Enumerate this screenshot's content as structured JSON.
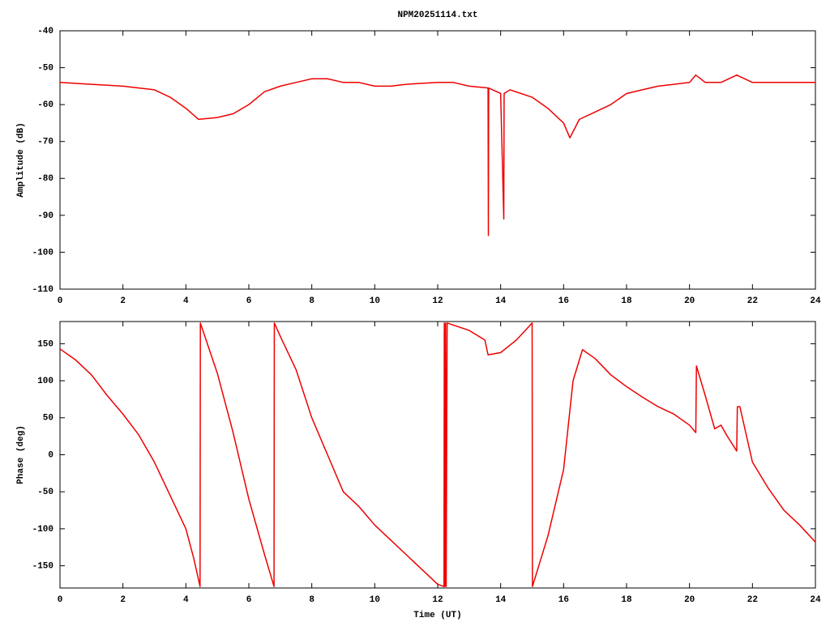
{
  "chart_data": [
    {
      "type": "line",
      "title": "NPM20251114.txt",
      "ylabel": "Amplitude (dB)",
      "color": "#ee0000",
      "x": [
        0,
        1,
        2,
        3,
        3.5,
        4,
        4.4,
        5,
        5.5,
        6,
        6.5,
        7,
        7.5,
        8,
        8.5,
        9,
        9.5,
        10,
        10.5,
        11,
        12,
        12.5,
        13,
        13.6,
        13.61,
        13.62,
        14,
        14.1,
        14.11,
        14.3,
        15,
        15.5,
        16,
        16.2,
        16.5,
        17,
        17.5,
        18,
        18.5,
        19,
        19.5,
        20,
        20.2,
        20.5,
        21,
        21.5,
        22,
        23,
        24
      ],
      "values": [
        -54,
        -54.5,
        -55,
        -56,
        -58,
        -61,
        -64,
        -63.5,
        -62.5,
        -60,
        -56.5,
        -55,
        -54,
        -53,
        -53,
        -54,
        -54,
        -55,
        -55,
        -54.5,
        -54,
        -54,
        -55,
        -55.5,
        -95.5,
        -55.5,
        -57,
        -91,
        -57,
        -56,
        -58,
        -61,
        -65,
        -69,
        -64,
        -62,
        -60,
        -57,
        -56,
        -55,
        -54.5,
        -54,
        -52,
        -54,
        -54,
        -52,
        -54,
        -54,
        -54
      ],
      "xlim": [
        0,
        24
      ],
      "xticks": [
        0,
        2,
        4,
        6,
        8,
        10,
        12,
        14,
        16,
        18,
        20,
        22,
        24
      ],
      "ylim": [
        -110,
        -40
      ],
      "yticks": [
        -110,
        -100,
        -90,
        -80,
        -70,
        -60,
        -50,
        -40
      ]
    },
    {
      "type": "line",
      "ylabel": "Phase (deg)",
      "xlabel": "Time (UT)",
      "color": "#ee0000",
      "x": [
        0,
        0.5,
        1,
        1.5,
        2,
        2.5,
        3,
        3.5,
        4,
        4.25,
        4.45,
        4.46,
        5,
        5.5,
        6,
        6.5,
        6.8,
        6.81,
        7,
        7.5,
        8,
        8.5,
        9,
        9.5,
        10,
        10.5,
        11,
        11.5,
        12,
        12.2,
        12.21,
        12.23,
        12.25,
        12.27,
        12.3,
        13,
        13.5,
        13.6,
        14,
        14.5,
        15,
        15.01,
        15.5,
        16,
        16.3,
        16.6,
        17,
        17.5,
        18,
        18.5,
        19,
        19.5,
        20,
        20.2,
        20.22,
        20.5,
        20.8,
        21,
        21.2,
        21.5,
        21.52,
        21.6,
        22,
        22.5,
        23,
        23.5,
        24
      ],
      "values": [
        143,
        128,
        108,
        80,
        55,
        27,
        -10,
        -55,
        -100,
        -140,
        -178,
        178,
        110,
        30,
        -60,
        -135,
        -178,
        178,
        160,
        115,
        50,
        0,
        -50,
        -70,
        -95,
        -115,
        -135,
        -155,
        -175,
        -178,
        178,
        -178,
        178,
        -178,
        178,
        168,
        155,
        135,
        138,
        155,
        178,
        -178,
        -110,
        -20,
        100,
        142,
        130,
        108,
        92,
        78,
        65,
        55,
        40,
        30,
        120,
        80,
        35,
        40,
        25,
        5,
        65,
        65,
        -10,
        -45,
        -75,
        -95,
        -118
      ],
      "xlim": [
        0,
        24
      ],
      "xticks": [
        0,
        2,
        4,
        6,
        8,
        10,
        12,
        14,
        16,
        18,
        20,
        22,
        24
      ],
      "ylim": [
        -180,
        180
      ],
      "yticks": [
        -150,
        -100,
        -50,
        0,
        50,
        100,
        150
      ]
    }
  ]
}
